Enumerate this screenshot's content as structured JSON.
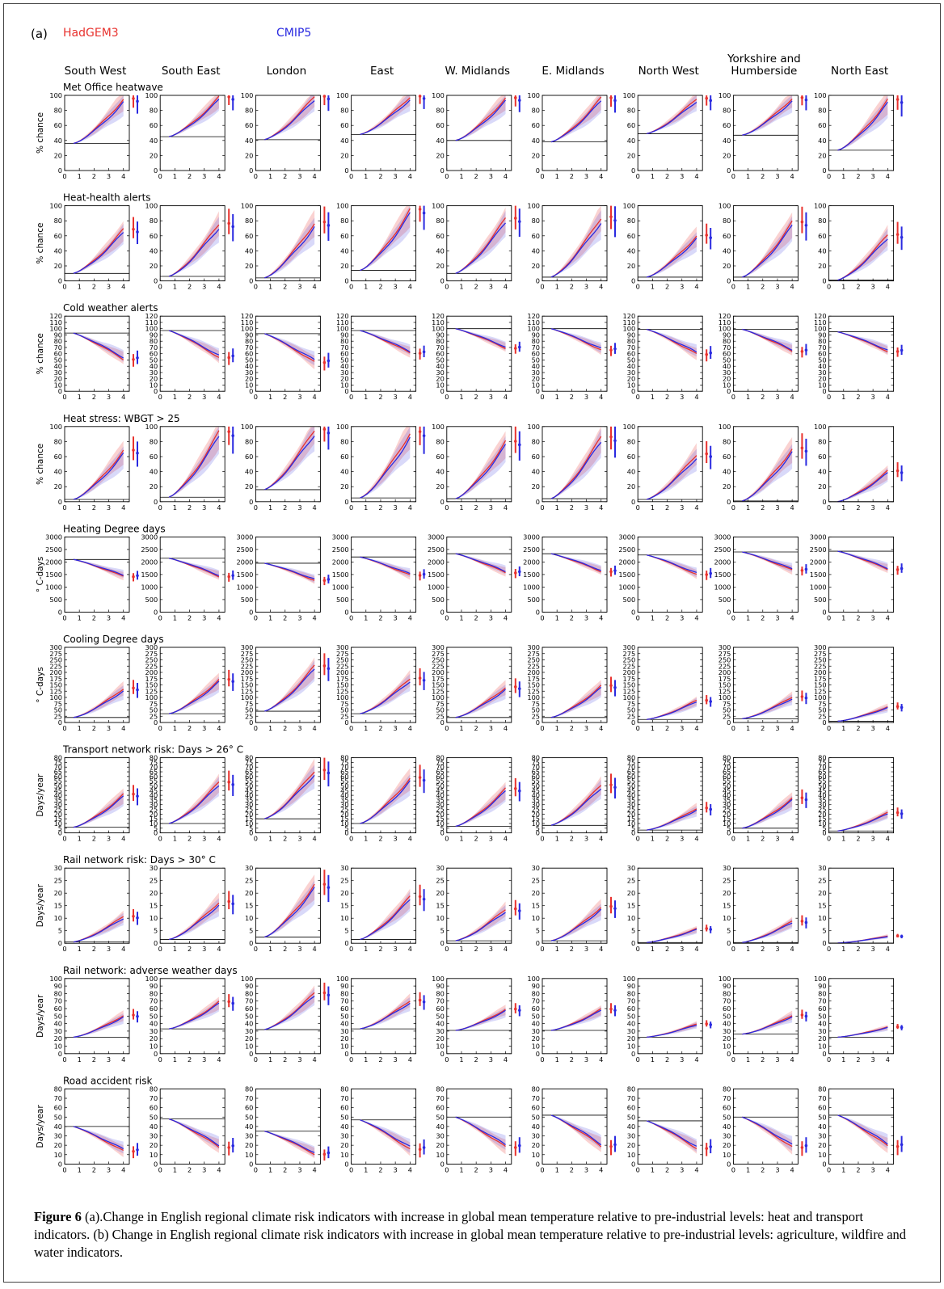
{
  "panel_label": "(a)",
  "legend": {
    "hadgem3": {
      "label": "HadGEM3",
      "color": "#e8322e"
    },
    "cmip5": {
      "label": "CMIP5",
      "color": "#2a2ae0"
    }
  },
  "caption": {
    "figure_label": "Figure 6",
    "text": " (a).Change in English regional climate risk indicators with increase in global mean temperature relative to pre-industrial levels: heat and transport indicators. (b) Change in English regional climate risk indicators with increase in global mean temperature relative to pre-industrial levels: agriculture, wildfire and water indicators."
  },
  "chart_data": {
    "type": "line",
    "x_tick_labels": [
      "0",
      "1",
      "2",
      "3",
      "4"
    ],
    "xlim": [
      0,
      4.4
    ],
    "regions": [
      {
        "label": "South West"
      },
      {
        "label": "South East"
      },
      {
        "label": "London"
      },
      {
        "label": "East"
      },
      {
        "label": "W. Midlands"
      },
      {
        "label": "E. Midlands"
      },
      {
        "label": "North West"
      },
      {
        "label": "Yorkshire and",
        "label2": "Humberside"
      },
      {
        "label": "North East"
      }
    ],
    "indicators": [
      {
        "title": "Met Office heatwave",
        "ylabel": "% chance",
        "ylim": [
          0,
          100
        ],
        "yticks": [
          "0",
          "20",
          "40",
          "60",
          "80",
          "100"
        ],
        "direction": "up",
        "start": [
          36,
          45,
          41,
          48,
          40,
          38,
          49,
          47,
          27
        ],
        "end": [
          97,
          99,
          100,
          100,
          98,
          98,
          97,
          98,
          96
        ]
      },
      {
        "title": "Heat-health alerts",
        "ylabel": "% chance",
        "ylim": [
          0,
          100
        ],
        "yticks": [
          "0",
          "20",
          "40",
          "60",
          "80",
          "100"
        ],
        "direction": "up",
        "start": [
          10,
          6,
          4,
          14,
          10,
          5,
          5,
          5,
          1
        ],
        "end": [
          70,
          78,
          80,
          97,
          85,
          87,
          62,
          80,
          63
        ]
      },
      {
        "title": "Cold weather alerts",
        "ylabel": "% chance",
        "ylim": [
          0,
          120
        ],
        "yticks": [
          "0",
          "10",
          "20",
          "30",
          "40",
          "50",
          "60",
          "70",
          "80",
          "90",
          "100",
          "110",
          "120"
        ],
        "direction": "down",
        "start": [
          93,
          97,
          92,
          97,
          100,
          100,
          99,
          99,
          95
        ],
        "end": [
          50,
          53,
          45,
          60,
          68,
          65,
          58,
          63,
          63
        ]
      },
      {
        "title": "Heat stress: WBGT > 25",
        "ylabel": "% chance",
        "ylim": [
          0,
          100
        ],
        "yticks": [
          "0",
          "20",
          "40",
          "60",
          "80",
          "100"
        ],
        "direction": "up",
        "start": [
          3,
          6,
          16,
          5,
          4,
          4,
          3,
          1,
          0
        ],
        "end": [
          70,
          95,
          98,
          95,
          82,
          88,
          65,
          73,
          42
        ]
      },
      {
        "title": "Heating Degree days",
        "ylabel": "° C-days",
        "ylim": [
          0,
          3000
        ],
        "yticks": [
          "0",
          "500",
          "1000",
          "1500",
          "2000",
          "2500",
          "3000"
        ],
        "direction": "down",
        "start": [
          2100,
          2150,
          1950,
          2200,
          2330,
          2330,
          2280,
          2400,
          2430
        ],
        "end": [
          1400,
          1400,
          1250,
          1450,
          1550,
          1600,
          1480,
          1650,
          1680
        ]
      },
      {
        "title": "Cooling Degree days",
        "ylabel": "° C-days",
        "ylim": [
          0,
          300
        ],
        "yticks": [
          "0",
          "25",
          "50",
          "75",
          "100",
          "125",
          "150",
          "175",
          "200",
          "225",
          "250",
          "275",
          "300"
        ],
        "direction": "up",
        "start": [
          20,
          35,
          45,
          35,
          20,
          20,
          12,
          15,
          5
        ],
        "end": [
          140,
          175,
          230,
          180,
          145,
          150,
          90,
          105,
          65
        ]
      },
      {
        "title": "Transport network risk: Days > 26° C",
        "ylabel": "Days/year",
        "ylim": [
          0,
          80
        ],
        "yticks": [
          "0",
          "5",
          "10",
          "15",
          "20",
          "25",
          "30",
          "35",
          "40",
          "45",
          "50",
          "55",
          "60",
          "65",
          "70",
          "75",
          "80"
        ],
        "direction": "up",
        "start": [
          6,
          10,
          15,
          10,
          7,
          8,
          3,
          5,
          2
        ],
        "end": [
          42,
          55,
          68,
          60,
          48,
          52,
          27,
          38,
          22
        ]
      },
      {
        "title": "Rail network risk: Days > 30° C",
        "ylabel": "Days/year",
        "ylim": [
          0,
          30
        ],
        "yticks": [
          "0",
          "5",
          "10",
          "15",
          "20",
          "25",
          "30"
        ],
        "direction": "up",
        "start": [
          0.5,
          1.5,
          2.5,
          1.5,
          1,
          1,
          0.3,
          0.3,
          0.1
        ],
        "end": [
          11,
          17,
          24,
          19,
          14,
          15,
          6,
          9,
          3
        ]
      },
      {
        "title": "Rail network: adverse weather days",
        "ylabel": "Days/year",
        "ylim": [
          0,
          100
        ],
        "yticks": [
          "0",
          "10",
          "20",
          "30",
          "40",
          "50",
          "60",
          "70",
          "80",
          "90",
          "100"
        ],
        "direction": "up",
        "start": [
          22,
          33,
          32,
          33,
          31,
          31,
          22,
          26,
          22
        ],
        "end": [
          52,
          70,
          82,
          72,
          60,
          60,
          40,
          52,
          36
        ]
      },
      {
        "title": "Road accident risk",
        "ylabel": "Days/year",
        "ylim": [
          0,
          80
        ],
        "yticks": [
          "0",
          "10",
          "20",
          "30",
          "40",
          "50",
          "60",
          "70",
          "80"
        ],
        "direction": "down",
        "start": [
          40,
          48,
          35,
          47,
          50,
          52,
          46,
          50,
          52
        ],
        "end": [
          13,
          17,
          10,
          15,
          17,
          18,
          16,
          17,
          18
        ]
      }
    ]
  }
}
